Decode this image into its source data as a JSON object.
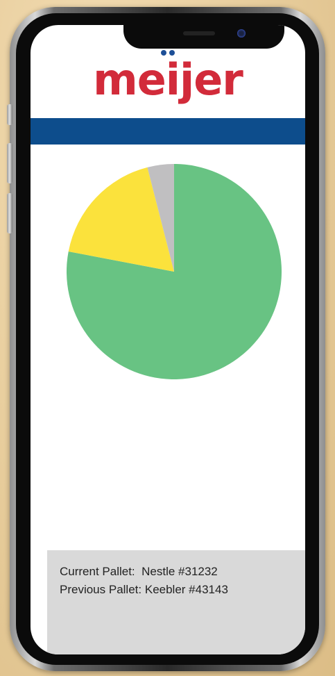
{
  "brand": {
    "logo_text": "meijer",
    "logo_color": "#d22b3a",
    "dot_color": "#1d4f97",
    "bar_color": "#0d4d8c"
  },
  "chart_data": {
    "type": "pie",
    "title": "",
    "slices": [
      {
        "value": 78,
        "color": "#68c383"
      },
      {
        "value": 18,
        "color": "#fbe23c"
      },
      {
        "value": 4,
        "color": "#c0bfc1"
      }
    ],
    "start_angle": "12 o'clock",
    "direction": "clockwise"
  },
  "info": {
    "current_label": "Current Pallet:",
    "current_value": "Nestle #31232",
    "previous_label": "Previous Pallet:",
    "previous_value": "Keebler #43143"
  }
}
